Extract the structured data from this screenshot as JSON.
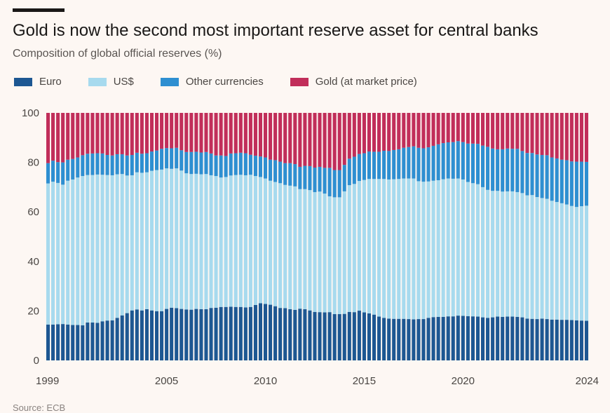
{
  "header": {
    "title": "Gold is now the second most important reserve asset for central banks",
    "subtitle": "Composition of global official reserves (%)"
  },
  "legend": [
    {
      "label": "Euro",
      "color": "#1d5792"
    },
    {
      "label": "US$",
      "color": "#a7daee"
    },
    {
      "label": "Other currencies",
      "color": "#2e8fd1"
    },
    {
      "label": "Gold (at market price)",
      "color": "#c12e5a"
    }
  ],
  "source": "Source: ECB",
  "chart_data": {
    "type": "bar",
    "stacked": true,
    "title": "Gold is now the second most important reserve asset for central banks",
    "subtitle": "Composition of global official reserves (%)",
    "xlabel": "",
    "ylabel": "",
    "ylim": [
      0,
      100
    ],
    "yticks": [
      0,
      20,
      40,
      60,
      80,
      100
    ],
    "xticks": [
      "1999",
      "2005",
      "2010",
      "2015",
      "2020",
      "2024"
    ],
    "x_start": 1999,
    "periods_per_year": 4,
    "grid": false,
    "legend_position": "top",
    "series": [
      {
        "name": "Euro",
        "color": "#1d5792",
        "values": [
          14.5,
          14.5,
          14.6,
          14.7,
          14.5,
          14.3,
          14.3,
          14.2,
          15.3,
          15.3,
          15.2,
          15.8,
          16.1,
          16.2,
          17.2,
          18.2,
          19.1,
          20.2,
          20.6,
          20.2,
          20.7,
          20.2,
          19.9,
          19.9,
          20.8,
          21.3,
          21.1,
          20.8,
          20.6,
          20.5,
          20.8,
          20.7,
          20.7,
          21.2,
          21.3,
          21.6,
          21.6,
          21.7,
          21.6,
          21.6,
          21.4,
          21.6,
          22.4,
          23.1,
          22.8,
          22.5,
          21.9,
          21.2,
          21.1,
          20.7,
          20.4,
          20.9,
          20.7,
          20.2,
          19.6,
          19.5,
          19.4,
          19.5,
          18.7,
          18.7,
          18.8,
          19.6,
          19.5,
          20.1,
          19.4,
          19.0,
          18.5,
          17.7,
          17.2,
          16.9,
          16.8,
          16.8,
          16.8,
          16.7,
          16.6,
          16.7,
          16.7,
          17.2,
          17.5,
          17.6,
          17.6,
          17.8,
          17.8,
          18.1,
          18.0,
          17.9,
          17.8,
          17.7,
          17.4,
          17.2,
          17.4,
          17.7,
          17.6,
          17.7,
          17.7,
          17.6,
          17.4,
          16.9,
          16.8,
          16.7,
          16.9,
          16.7,
          16.5,
          16.5,
          16.4,
          16.4,
          16.3,
          16.2,
          16.1,
          16.0
        ]
      },
      {
        "name": "US$",
        "color": "#a7daee",
        "values": [
          57.0,
          57.7,
          57.1,
          56.3,
          58.1,
          58.8,
          59.6,
          60.3,
          59.6,
          59.6,
          59.9,
          59.2,
          58.8,
          58.6,
          58.0,
          57.1,
          55.6,
          54.6,
          55.4,
          55.6,
          55.3,
          56.4,
          57.0,
          57.2,
          56.8,
          56.1,
          56.5,
          55.9,
          55.0,
          54.8,
          54.6,
          54.5,
          54.6,
          53.6,
          53.2,
          52.3,
          52.5,
          53.0,
          53.3,
          53.4,
          53.4,
          53.4,
          52.1,
          51.0,
          50.7,
          50.1,
          50.2,
          50.4,
          49.8,
          49.9,
          49.9,
          48.3,
          48.5,
          48.6,
          48.4,
          48.7,
          48.0,
          46.8,
          47.2,
          47.2,
          49.5,
          51.2,
          51.8,
          52.4,
          53.5,
          54.3,
          54.8,
          55.6,
          56.1,
          56.2,
          56.4,
          56.5,
          56.7,
          56.8,
          56.9,
          55.7,
          55.5,
          55.1,
          55.1,
          55.2,
          55.6,
          55.7,
          55.6,
          55.4,
          55.1,
          54.2,
          53.8,
          53.5,
          52.6,
          51.7,
          51.1,
          50.8,
          50.6,
          50.6,
          50.6,
          50.4,
          50.2,
          49.8,
          50.0,
          49.3,
          48.7,
          48.6,
          48.0,
          47.5,
          47.1,
          46.6,
          46.1,
          45.8,
          46.2,
          46.5
        ]
      },
      {
        "name": "Other currencies",
        "color": "#2e8fd1",
        "values": [
          8.2,
          8.5,
          8.4,
          9.0,
          8.5,
          8.3,
          8.1,
          8.4,
          8.6,
          8.7,
          8.6,
          8.6,
          8.1,
          8.0,
          8.1,
          8.0,
          8.1,
          8.2,
          7.9,
          7.7,
          7.7,
          7.8,
          7.9,
          8.4,
          8.2,
          8.3,
          8.3,
          8.2,
          8.6,
          8.9,
          8.9,
          8.8,
          8.9,
          8.8,
          8.3,
          8.9,
          8.5,
          8.9,
          8.8,
          8.9,
          8.9,
          8.1,
          8.2,
          8.3,
          8.5,
          8.5,
          8.8,
          8.7,
          8.8,
          9.1,
          9.0,
          9.0,
          9.4,
          9.7,
          9.9,
          10.0,
          10.4,
          11.5,
          11.0,
          11.0,
          10.7,
          10.7,
          11.0,
          10.9,
          10.8,
          11.1,
          11.0,
          11.0,
          11.4,
          11.5,
          11.8,
          12.0,
          12.4,
          12.7,
          13.0,
          13.5,
          13.5,
          13.8,
          14.1,
          14.5,
          14.6,
          14.6,
          14.8,
          15.1,
          15.1,
          15.5,
          16.0,
          16.3,
          16.8,
          17.4,
          17.1,
          16.8,
          17.1,
          17.3,
          17.2,
          17.5,
          17.0,
          17.1,
          17.0,
          17.2,
          17.4,
          17.6,
          17.5,
          17.6,
          17.6,
          17.9,
          18.0,
          18.3,
          18.0,
          17.7
        ]
      },
      {
        "name": "Gold (at market price)",
        "color": "#c12e5a",
        "values": [
          20.3,
          19.3,
          19.9,
          20.0,
          18.9,
          18.6,
          18.0,
          17.1,
          16.5,
          16.4,
          16.3,
          16.4,
          17.0,
          17.2,
          16.7,
          16.7,
          17.2,
          17.0,
          16.1,
          16.5,
          16.3,
          15.6,
          15.2,
          14.5,
          14.2,
          14.3,
          14.1,
          15.1,
          15.8,
          15.8,
          15.7,
          16.0,
          15.8,
          16.4,
          17.2,
          17.2,
          17.4,
          16.4,
          16.3,
          16.1,
          16.3,
          16.9,
          17.3,
          17.6,
          18.0,
          18.9,
          19.1,
          19.7,
          20.3,
          20.3,
          20.7,
          21.8,
          21.4,
          21.5,
          22.1,
          21.8,
          22.2,
          22.2,
          23.1,
          23.1,
          21.0,
          18.5,
          17.7,
          16.6,
          16.3,
          15.6,
          15.7,
          15.7,
          15.3,
          15.4,
          15.0,
          14.7,
          14.1,
          13.8,
          13.5,
          14.1,
          14.3,
          13.9,
          13.3,
          12.7,
          12.2,
          11.9,
          11.8,
          11.4,
          11.8,
          12.4,
          12.4,
          12.5,
          13.2,
          13.7,
          14.4,
          14.7,
          14.7,
          14.4,
          14.5,
          14.5,
          15.4,
          16.2,
          16.2,
          16.8,
          17.0,
          17.1,
          18.0,
          18.4,
          18.9,
          19.1,
          19.6,
          19.7,
          19.7,
          19.8
        ]
      }
    ]
  }
}
